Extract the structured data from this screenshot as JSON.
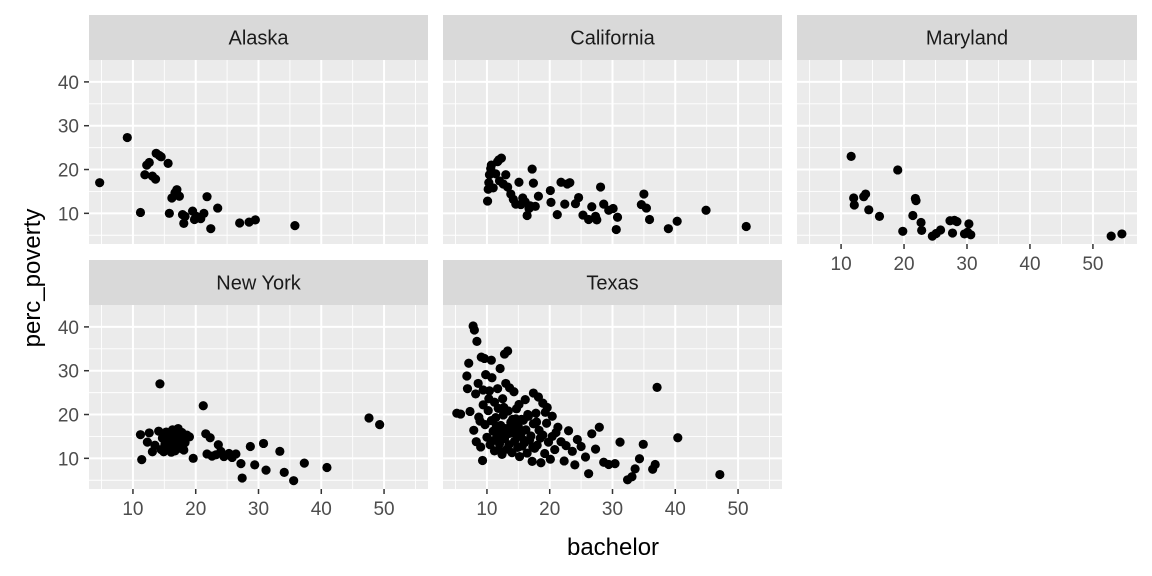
{
  "chart_data": {
    "type": "scatter",
    "facet_by": "state",
    "xlabel": "bachelor",
    "ylabel": "perc_poverty",
    "xlim": [
      3,
      57
    ],
    "ylim": [
      3,
      45
    ],
    "x_ticks": [
      10,
      20,
      30,
      40,
      50
    ],
    "y_ticks": [
      10,
      20,
      30,
      40
    ],
    "grid": true,
    "legend": "none",
    "colors": {
      "panel_bg": "#ebebeb",
      "strip_bg": "#d9d9d9",
      "grid_major": "#ffffff",
      "point": "#000000"
    },
    "panels": [
      {
        "name": "Alaska",
        "points": [
          [
            4.7,
            17.0
          ],
          [
            9.1,
            27.3
          ],
          [
            11.2,
            10.2
          ],
          [
            11.9,
            18.8
          ],
          [
            12.2,
            21.0
          ],
          [
            12.6,
            21.6
          ],
          [
            13.1,
            18.5
          ],
          [
            13.6,
            17.8
          ],
          [
            13.7,
            23.7
          ],
          [
            14.2,
            23.2
          ],
          [
            14.5,
            22.9
          ],
          [
            15.6,
            21.4
          ],
          [
            15.8,
            10.0
          ],
          [
            16.2,
            13.5
          ],
          [
            16.7,
            14.7
          ],
          [
            17.0,
            15.4
          ],
          [
            17.4,
            13.9
          ],
          [
            17.9,
            9.7
          ],
          [
            18.1,
            7.7
          ],
          [
            18.3,
            9.3
          ],
          [
            19.5,
            10.5
          ],
          [
            19.8,
            8.6
          ],
          [
            20.1,
            9.3
          ],
          [
            20.4,
            9.0
          ],
          [
            20.8,
            8.8
          ],
          [
            21.3,
            10.0
          ],
          [
            21.8,
            13.8
          ],
          [
            22.4,
            6.5
          ],
          [
            23.5,
            11.2
          ],
          [
            27.0,
            7.8
          ],
          [
            28.5,
            8.0
          ],
          [
            29.5,
            8.5
          ],
          [
            35.8,
            7.2
          ]
        ]
      },
      {
        "name": "California",
        "points": [
          [
            10.1,
            12.8
          ],
          [
            10.2,
            15.5
          ],
          [
            10.3,
            17.0
          ],
          [
            10.4,
            18.8
          ],
          [
            10.6,
            20.2
          ],
          [
            10.7,
            21.0
          ],
          [
            11.0,
            15.8
          ],
          [
            11.4,
            19.0
          ],
          [
            11.7,
            21.8
          ],
          [
            11.9,
            22.2
          ],
          [
            12.0,
            17.4
          ],
          [
            12.3,
            22.6
          ],
          [
            12.6,
            16.7
          ],
          [
            13.0,
            18.8
          ],
          [
            13.3,
            16.0
          ],
          [
            13.8,
            14.4
          ],
          [
            14.2,
            13.2
          ],
          [
            14.6,
            12.1
          ],
          [
            15.1,
            17.1
          ],
          [
            15.4,
            12.0
          ],
          [
            15.7,
            13.5
          ],
          [
            16.1,
            12.6
          ],
          [
            16.4,
            9.5
          ],
          [
            16.7,
            11.1
          ],
          [
            16.9,
            11.7
          ],
          [
            17.2,
            20.1
          ],
          [
            17.4,
            16.9
          ],
          [
            17.7,
            11.6
          ],
          [
            18.2,
            13.9
          ],
          [
            20.1,
            15.2
          ],
          [
            20.2,
            12.5
          ],
          [
            21.2,
            9.7
          ],
          [
            21.8,
            17.1
          ],
          [
            22.4,
            12.1
          ],
          [
            22.8,
            16.7
          ],
          [
            23.2,
            17.0
          ],
          [
            24.1,
            12.2
          ],
          [
            24.6,
            13.6
          ],
          [
            25.3,
            9.6
          ],
          [
            26.2,
            8.6
          ],
          [
            26.7,
            11.5
          ],
          [
            27.3,
            9.3
          ],
          [
            27.5,
            8.5
          ],
          [
            28.1,
            16.0
          ],
          [
            28.6,
            12.1
          ],
          [
            29.4,
            10.7
          ],
          [
            30.1,
            11.1
          ],
          [
            30.6,
            6.3
          ],
          [
            30.8,
            9.1
          ],
          [
            34.6,
            12.0
          ],
          [
            35.0,
            14.4
          ],
          [
            35.4,
            11.2
          ],
          [
            35.9,
            8.6
          ],
          [
            38.9,
            6.5
          ],
          [
            40.3,
            8.2
          ],
          [
            44.9,
            10.7
          ],
          [
            51.3,
            7.0
          ]
        ]
      },
      {
        "name": "Maryland",
        "points": [
          [
            11.6,
            23.0
          ],
          [
            12.0,
            13.5
          ],
          [
            12.1,
            11.9
          ],
          [
            13.6,
            13.8
          ],
          [
            13.9,
            14.4
          ],
          [
            14.4,
            10.8
          ],
          [
            16.1,
            9.3
          ],
          [
            19.0,
            19.9
          ],
          [
            19.8,
            5.9
          ],
          [
            21.4,
            9.5
          ],
          [
            21.8,
            13.4
          ],
          [
            21.9,
            12.9
          ],
          [
            22.7,
            7.9
          ],
          [
            22.8,
            6.1
          ],
          [
            24.5,
            4.8
          ],
          [
            25.1,
            5.4
          ],
          [
            25.8,
            6.2
          ],
          [
            27.3,
            8.3
          ],
          [
            27.7,
            5.5
          ],
          [
            28.0,
            8.4
          ],
          [
            28.4,
            8.1
          ],
          [
            29.6,
            5.3
          ],
          [
            30.1,
            5.7
          ],
          [
            30.3,
            7.6
          ],
          [
            30.6,
            5.1
          ],
          [
            52.9,
            4.8
          ],
          [
            54.6,
            5.3
          ]
        ]
      },
      {
        "name": "New York",
        "points": [
          [
            11.2,
            15.4
          ],
          [
            11.4,
            9.7
          ],
          [
            12.3,
            13.7
          ],
          [
            12.6,
            15.8
          ],
          [
            13.1,
            11.5
          ],
          [
            13.5,
            13.0
          ],
          [
            14.1,
            16.2
          ],
          [
            14.3,
            27.0
          ],
          [
            14.5,
            12.0
          ],
          [
            14.7,
            14.6
          ],
          [
            14.9,
            11.5
          ],
          [
            15.1,
            13.2
          ],
          [
            15.3,
            16.0
          ],
          [
            15.4,
            14.0
          ],
          [
            15.6,
            12.7
          ],
          [
            15.8,
            15.2
          ],
          [
            16.0,
            13.9
          ],
          [
            16.1,
            11.4
          ],
          [
            16.3,
            16.5
          ],
          [
            16.5,
            14.5
          ],
          [
            16.6,
            12.9
          ],
          [
            16.7,
            11.7
          ],
          [
            16.9,
            15.5
          ],
          [
            17.1,
            14.2
          ],
          [
            17.2,
            16.8
          ],
          [
            17.4,
            13.4
          ],
          [
            17.5,
            12.3
          ],
          [
            17.8,
            15.9
          ],
          [
            17.9,
            14.7
          ],
          [
            18.1,
            11.9
          ],
          [
            18.3,
            13.6
          ],
          [
            18.6,
            15.3
          ],
          [
            19.0,
            14.9
          ],
          [
            19.6,
            10.0
          ],
          [
            21.2,
            22.0
          ],
          [
            21.6,
            15.6
          ],
          [
            21.8,
            11.0
          ],
          [
            22.3,
            14.7
          ],
          [
            22.6,
            10.5
          ],
          [
            23.2,
            10.8
          ],
          [
            23.6,
            13.1
          ],
          [
            24.0,
            11.6
          ],
          [
            24.5,
            10.4
          ],
          [
            25.3,
            11.1
          ],
          [
            25.8,
            10.2
          ],
          [
            26.4,
            11.0
          ],
          [
            27.2,
            8.8
          ],
          [
            27.4,
            5.5
          ],
          [
            28.7,
            12.7
          ],
          [
            29.4,
            8.5
          ],
          [
            30.8,
            13.4
          ],
          [
            31.2,
            7.3
          ],
          [
            33.4,
            11.6
          ],
          [
            34.1,
            6.8
          ],
          [
            35.6,
            4.9
          ],
          [
            37.3,
            8.9
          ],
          [
            40.9,
            7.9
          ],
          [
            47.6,
            19.2
          ],
          [
            49.3,
            17.7
          ]
        ]
      },
      {
        "name": "Texas",
        "points": [
          [
            7.8,
            40.2
          ],
          [
            8.0,
            39.3
          ],
          [
            8.4,
            36.7
          ],
          [
            6.8,
            28.8
          ],
          [
            7.1,
            31.7
          ],
          [
            9.1,
            33.1
          ],
          [
            9.6,
            32.8
          ],
          [
            10.7,
            32.4
          ],
          [
            12.8,
            33.8
          ],
          [
            13.3,
            34.5
          ],
          [
            6.9,
            25.9
          ],
          [
            7.3,
            20.7
          ],
          [
            8.2,
            24.7
          ],
          [
            8.6,
            27.1
          ],
          [
            9.4,
            25.6
          ],
          [
            9.8,
            29.1
          ],
          [
            10.3,
            23.6
          ],
          [
            10.8,
            28.4
          ],
          [
            11.2,
            22.8
          ],
          [
            11.7,
            25.9
          ],
          [
            12.1,
            30.5
          ],
          [
            12.5,
            23.6
          ],
          [
            13.0,
            27.1
          ],
          [
            13.6,
            26.1
          ],
          [
            14.3,
            25.2
          ],
          [
            15.1,
            22.3
          ],
          [
            16.1,
            23.4
          ],
          [
            17.4,
            24.9
          ],
          [
            18.2,
            24.0
          ],
          [
            18.9,
            22.6
          ],
          [
            19.6,
            21.6
          ],
          [
            20.4,
            19.6
          ],
          [
            5.2,
            20.3
          ],
          [
            5.8,
            20.1
          ],
          [
            7.9,
            16.4
          ],
          [
            8.3,
            13.8
          ],
          [
            8.7,
            19.4
          ],
          [
            9.0,
            12.6
          ],
          [
            9.3,
            9.5
          ],
          [
            9.7,
            17.7
          ],
          [
            10.0,
            14.8
          ],
          [
            10.2,
            20.9
          ],
          [
            10.5,
            13.1
          ],
          [
            10.7,
            18.6
          ],
          [
            11.0,
            16.2
          ],
          [
            11.2,
            11.7
          ],
          [
            11.4,
            19.3
          ],
          [
            11.6,
            15.0
          ],
          [
            11.8,
            21.4
          ],
          [
            12.0,
            13.3
          ],
          [
            12.2,
            17.5
          ],
          [
            12.4,
            10.9
          ],
          [
            12.6,
            19.9
          ],
          [
            12.8,
            14.5
          ],
          [
            13.0,
            16.8
          ],
          [
            13.2,
            12.1
          ],
          [
            13.4,
            20.8
          ],
          [
            13.6,
            15.7
          ],
          [
            13.8,
            18.2
          ],
          [
            14.0,
            11.3
          ],
          [
            14.2,
            16.1
          ],
          [
            14.4,
            13.9
          ],
          [
            14.6,
            19.0
          ],
          [
            14.8,
            14.9
          ],
          [
            15.0,
            17.2
          ],
          [
            15.2,
            10.4
          ],
          [
            15.4,
            15.5
          ],
          [
            15.6,
            12.8
          ],
          [
            15.8,
            18.7
          ],
          [
            16.0,
            13.6
          ],
          [
            16.2,
            16.5
          ],
          [
            16.4,
            11.2
          ],
          [
            16.6,
            19.6
          ],
          [
            16.8,
            14.2
          ],
          [
            17.0,
            15.1
          ],
          [
            17.2,
            9.3
          ],
          [
            17.4,
            17.9
          ],
          [
            17.6,
            12.3
          ],
          [
            17.8,
            20.3
          ],
          [
            18.0,
            13.0
          ],
          [
            18.3,
            16.4
          ],
          [
            18.6,
            9.0
          ],
          [
            18.9,
            15.3
          ],
          [
            19.2,
            11.1
          ],
          [
            19.5,
            18.0
          ],
          [
            19.8,
            13.7
          ],
          [
            20.1,
            9.8
          ],
          [
            20.4,
            15.0
          ],
          [
            20.8,
            12.0
          ],
          [
            21.3,
            17.1
          ],
          [
            21.8,
            13.8
          ],
          [
            22.3,
            9.4
          ],
          [
            23.0,
            16.3
          ],
          [
            23.6,
            11.6
          ],
          [
            24.0,
            8.5
          ],
          [
            24.4,
            14.3
          ],
          [
            25.0,
            12.7
          ],
          [
            25.7,
            10.3
          ],
          [
            26.2,
            6.5
          ],
          [
            26.7,
            15.6
          ],
          [
            27.3,
            12.1
          ],
          [
            27.9,
            17.1
          ],
          [
            28.6,
            9.1
          ],
          [
            29.4,
            8.6
          ],
          [
            30.4,
            8.8
          ],
          [
            31.2,
            13.7
          ],
          [
            32.4,
            5.1
          ],
          [
            33.1,
            5.8
          ],
          [
            33.6,
            7.6
          ],
          [
            34.3,
            9.9
          ],
          [
            34.9,
            13.2
          ],
          [
            36.4,
            7.5
          ],
          [
            36.8,
            8.6
          ],
          [
            37.1,
            26.2
          ],
          [
            40.4,
            14.7
          ],
          [
            47.1,
            6.3
          ],
          [
            11.5,
            17.3
          ],
          [
            12.7,
            21.6
          ],
          [
            13.9,
            17.6
          ],
          [
            14.7,
            21.3
          ],
          [
            15.5,
            18.9
          ],
          [
            10.4,
            25.4
          ],
          [
            9.4,
            22.2
          ],
          [
            17.9,
            18.3
          ],
          [
            19.3,
            20.5
          ],
          [
            12.3,
            16.0
          ],
          [
            14.1,
            18.9
          ],
          [
            16.5,
            20.0
          ],
          [
            10.9,
            14.0
          ],
          [
            13.5,
            13.1
          ],
          [
            15.9,
            14.1
          ],
          [
            18.5,
            14.6
          ],
          [
            11.9,
            12.0
          ],
          [
            14.9,
            12.5
          ],
          [
            17.3,
            12.6
          ],
          [
            8.9,
            18.5
          ],
          [
            21.0,
            15.9
          ],
          [
            22.6,
            12.9
          ]
        ]
      }
    ]
  }
}
